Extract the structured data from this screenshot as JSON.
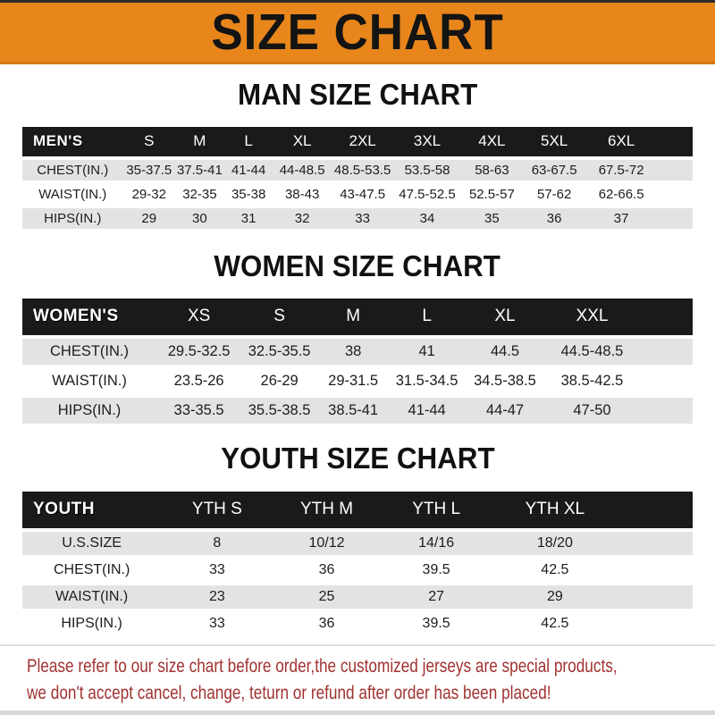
{
  "banner": {
    "title": "SIZE CHART"
  },
  "sections": [
    {
      "id": "men",
      "heading": "MAN SIZE CHART",
      "table": {
        "label": "MEN'S",
        "columns": [
          "S",
          "M",
          "L",
          "XL",
          "2XL",
          "3XL",
          "4XL",
          "5XL",
          "6XL"
        ],
        "rows": [
          {
            "label": "CHEST(IN.)",
            "values": [
              "35-37.5",
              "37.5-41",
              "41-44",
              "44-48.5",
              "48.5-53.5",
              "53.5-58",
              "58-63",
              "63-67.5",
              "67.5-72"
            ]
          },
          {
            "label": "WAIST(IN.)",
            "values": [
              "29-32",
              "32-35",
              "35-38",
              "38-43",
              "43-47.5",
              "47.5-52.5",
              "52.5-57",
              "57-62",
              "62-66.5"
            ]
          },
          {
            "label": "HIPS(IN.)",
            "values": [
              "29",
              "30",
              "31",
              "32",
              "33",
              "34",
              "35",
              "36",
              "37"
            ]
          }
        ]
      }
    },
    {
      "id": "women",
      "heading": "WOMEN SIZE CHART",
      "table": {
        "label": "WOMEN'S",
        "columns": [
          "XS",
          "S",
          "M",
          "L",
          "XL",
          "XXL"
        ],
        "rows": [
          {
            "label": "CHEST(IN.)",
            "values": [
              "29.5-32.5",
              "32.5-35.5",
              "38",
              "41",
              "44.5",
              "44.5-48.5"
            ]
          },
          {
            "label": "WAIST(IN.)",
            "values": [
              "23.5-26",
              "26-29",
              "29-31.5",
              "31.5-34.5",
              "34.5-38.5",
              "38.5-42.5"
            ]
          },
          {
            "label": "HIPS(IN.)",
            "values": [
              "33-35.5",
              "35.5-38.5",
              "38.5-41",
              "41-44",
              "44-47",
              "47-50"
            ]
          }
        ]
      }
    },
    {
      "id": "youth",
      "heading": "YOUTH SIZE CHART",
      "table": {
        "label": "YOUTH",
        "columns": [
          "YTH S",
          "YTH M",
          "YTH L",
          "YTH XL"
        ],
        "rows": [
          {
            "label": "U.S.SIZE",
            "values": [
              "8",
              "10/12",
              "14/16",
              "18/20"
            ]
          },
          {
            "label": "CHEST(IN.)",
            "values": [
              "33",
              "36",
              "39.5",
              "42.5"
            ]
          },
          {
            "label": "WAIST(IN.)",
            "values": [
              "23",
              "25",
              "27",
              "29"
            ]
          },
          {
            "label": "HIPS(IN.)",
            "values": [
              "33",
              "36",
              "39.5",
              "42.5"
            ]
          }
        ]
      }
    }
  ],
  "footer": {
    "line1": "Please refer to our size chart before order,the customized jerseys are special products,",
    "line2": "we don't accept cancel, change, teturn or refund after order has been placed!"
  },
  "colors": {
    "banner_orange": "#e8861c",
    "header_black": "#1a1a1a",
    "row_gray": "#e3e3e3",
    "note_red": "#a03230"
  }
}
